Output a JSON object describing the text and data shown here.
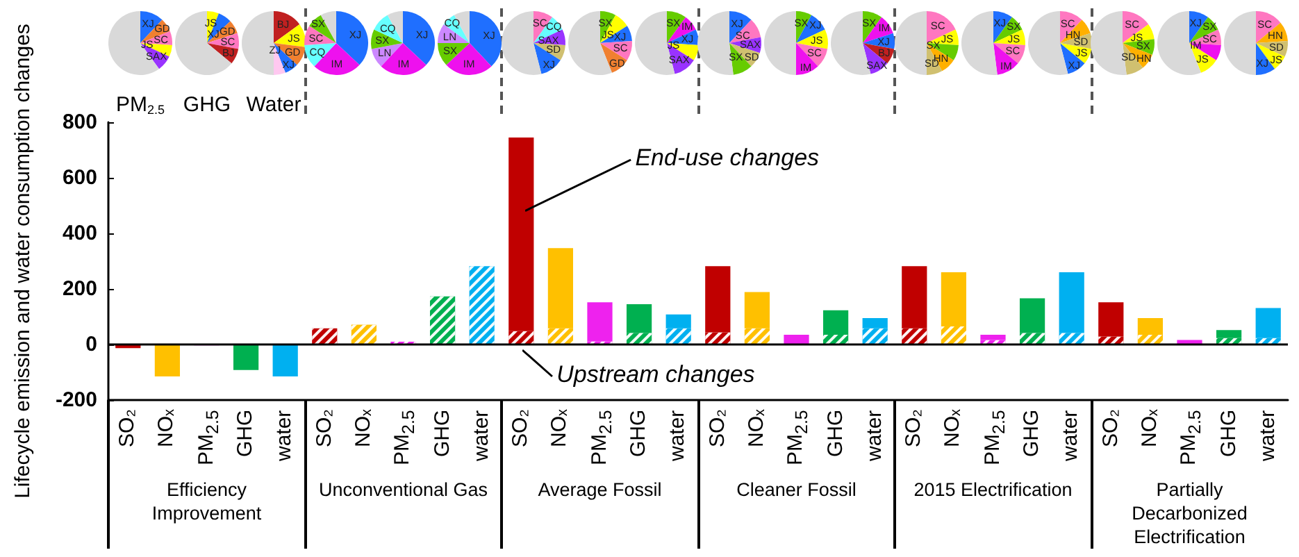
{
  "chart_data": [
    {
      "type": "bar",
      "stacked": true,
      "ylabel": "Lifecycle emission and water consumption changes",
      "ylim": [
        -200,
        800
      ],
      "yticks": [
        -200,
        0,
        200,
        400,
        600,
        800
      ],
      "grid": false,
      "ref_lines": [
        {
          "axis": "y",
          "value": 0
        }
      ],
      "categories": [
        "SO₂",
        "NOₓ",
        "PM$_{2.5}$",
        "GHG",
        "water",
        "SO₂",
        "NOₓ",
        "PM$_{2.5}$",
        "GHG",
        "water",
        "SO₂",
        "NOₓ",
        "PM$_{2.5}$",
        "GHG",
        "water",
        "SO₂",
        "NOₓ",
        "PM$_{2.5}$",
        "GHG",
        "water",
        "SO₂",
        "NOₓ",
        "PM$_{2.5}$",
        "GHG",
        "water",
        "SO₂",
        "NOₓ",
        "PM$_{2.5}$",
        "GHG",
        "water"
      ],
      "annotations": [
        "Efficiency Improvement",
        "Unconventional Gas",
        "Average Fossil",
        "Cleaner Fossil",
        "2015 Electrification",
        "Partially Decarbonized Electrification"
      ],
      "series": [
        {
          "name": "Upstream changes",
          "colors": [
            "#c00000",
            "#ffc000",
            "#ee22ee",
            "#00b050",
            "#00b0f0",
            "#c00000",
            "#ffc000",
            "#ee22ee",
            "#00b050",
            "#00b0f0",
            "#c00000",
            "#ffc000",
            "#ee22ee",
            "#00b050",
            "#00b0f0",
            "#c00000",
            "#ffc000",
            "#ee22ee",
            "#00b050",
            "#00b0f0",
            "#c00000",
            "#ffc000",
            "#ee22ee",
            "#00b050",
            "#00b0f0",
            "#c00000",
            "#ffc000",
            "#ee22ee",
            "#00b050",
            "#00b0f0"
          ],
          "values": [
            0,
            0,
            0,
            0,
            0,
            58,
            71,
            10,
            173,
            282,
            48,
            58,
            11,
            42,
            58,
            44,
            58,
            0,
            35,
            58,
            58,
            65,
            16,
            42,
            42,
            29,
            35,
            0,
            23,
            23
          ]
        },
        {
          "name": "End-use changes",
          "colors": [
            "#c00000",
            "#ffc000",
            "#ee22ee",
            "#00b050",
            "#00b0f0",
            "#c00000",
            "#ffc000",
            "#ee22ee",
            "#00b050",
            "#00b0f0",
            "#c00000",
            "#ffc000",
            "#ee22ee",
            "#00b050",
            "#00b0f0",
            "#c00000",
            "#ffc000",
            "#ee22ee",
            "#00b050",
            "#00b0f0",
            "#c00000",
            "#ffc000",
            "#ee22ee",
            "#00b050",
            "#00b0f0",
            "#c00000",
            "#ffc000",
            "#ee22ee",
            "#00b050",
            "#00b0f0"
          ],
          "values": [
            -13,
            -115,
            -3,
            -92,
            -115,
            0,
            0,
            0,
            0,
            0,
            697,
            289,
            141,
            103,
            50,
            238,
            131,
            35,
            88,
            37,
            224,
            195,
            19,
            124,
            218,
            123,
            60,
            16,
            29,
            108
          ]
        }
      ]
    },
    {
      "type": "pie",
      "title": "PM$_{2.5}$",
      "categories": [
        "XJ",
        "GD",
        "SC",
        "JS",
        "SAX",
        null
      ],
      "values": [
        12,
        7,
        7,
        6,
        8,
        60
      ],
      "colors": [
        "#1f6fff",
        "#f08030",
        "#ff77c0",
        "#ffff00",
        "#9933ff",
        "#d9d9d9"
      ]
    },
    {
      "type": "pie",
      "title": "GHG",
      "categories": [
        "JS",
        "XJ",
        "GD",
        "SC",
        "BJ",
        null
      ],
      "values": [
        6,
        7,
        7,
        8,
        8,
        64
      ],
      "colors": [
        "#ffff00",
        "#1f6fff",
        "#f08030",
        "#ff77c0",
        "#c02020",
        "#d9d9d9"
      ]
    },
    {
      "type": "pie",
      "title": "Water",
      "categories": [
        "BJ",
        "JS",
        "GD",
        "XJ",
        "ZJ",
        null
      ],
      "values": [
        15,
        12,
        10,
        7,
        6,
        50
      ],
      "colors": [
        "#c02020",
        "#ffff00",
        "#f08030",
        "#1f6fff",
        "#ffc8f0",
        "#d9d9d9"
      ]
    },
    {
      "type": "pie",
      "categories": [
        "XJ",
        "IM",
        "CQ",
        "SC",
        "SX",
        null
      ],
      "values": [
        37,
        25,
        12,
        10,
        8,
        8
      ],
      "colors": [
        "#1f6fff",
        "#ee11ee",
        "#66ffff",
        "#ff77c0",
        "#66cc00",
        "#d9d9d9"
      ]
    },
    {
      "type": "pie",
      "categories": [
        "XJ",
        "IM",
        "LN",
        "SX",
        "CQ",
        null
      ],
      "values": [
        37,
        25,
        10,
        10,
        10,
        8
      ],
      "colors": [
        "#1f6fff",
        "#ee11ee",
        "#cc88ff",
        "#66cc00",
        "#66ffff",
        "#d9d9d9"
      ]
    },
    {
      "type": "pie",
      "categories": [
        "XJ",
        "IM",
        "SX",
        "LN",
        "CQ",
        null
      ],
      "values": [
        38,
        25,
        12,
        10,
        7,
        8
      ],
      "colors": [
        "#1f6fff",
        "#ee11ee",
        "#66cc00",
        "#cc88ff",
        "#66ffff",
        "#d9d9d9"
      ]
    },
    {
      "type": "pie",
      "categories": [
        "SC",
        "CQ",
        "SAX",
        "SD",
        "XJ",
        null
      ],
      "values": [
        10,
        8,
        8,
        8,
        12,
        54
      ],
      "colors": [
        "#ff77c0",
        "#66ffff",
        "#9933ff",
        "#d0c070",
        "#1f6fff",
        "#d9d9d9"
      ]
    },
    {
      "type": "pie",
      "categories": [
        "SX",
        "JS",
        "XJ",
        "SC",
        "GD",
        null
      ],
      "values": [
        8,
        8,
        8,
        10,
        10,
        56
      ],
      "colors": [
        "#66cc00",
        "#ffff00",
        "#1f6fff",
        "#ff77c0",
        "#f08030",
        "#d9d9d9"
      ]
    },
    {
      "type": "pie",
      "categories": [
        "SX",
        "IM",
        "XJ",
        "JS",
        "SAX",
        null
      ],
      "values": [
        10,
        8,
        8,
        8,
        12,
        54
      ],
      "colors": [
        "#66cc00",
        "#ee11ee",
        "#1f6fff",
        "#ffff00",
        "#9933ff",
        "#d9d9d9"
      ]
    },
    {
      "type": "pie",
      "categories": [
        "XJ",
        "SC",
        "SAX",
        "SD",
        "SX",
        null
      ],
      "values": [
        12,
        10,
        8,
        8,
        10,
        52
      ],
      "colors": [
        "#1f6fff",
        "#ff77c0",
        "#9933ff",
        "#d0c070",
        "#66cc00",
        "#d9d9d9"
      ]
    },
    {
      "type": "pie",
      "categories": [
        "SX",
        "XJ",
        "JS",
        "SC",
        "IM",
        null
      ],
      "values": [
        8,
        10,
        10,
        10,
        12,
        50
      ],
      "colors": [
        "#66cc00",
        "#1f6fff",
        "#ffff00",
        "#ff77c0",
        "#ee11ee",
        "#d9d9d9"
      ]
    },
    {
      "type": "pie",
      "categories": [
        "SX",
        "IM",
        "XJ",
        "BJ",
        "SAX",
        null
      ],
      "values": [
        10,
        10,
        8,
        8,
        10,
        54
      ],
      "colors": [
        "#66cc00",
        "#ee11ee",
        "#1f6fff",
        "#c02020",
        "#9933ff",
        "#d9d9d9"
      ]
    },
    {
      "type": "pie",
      "categories": [
        "SC",
        "JS",
        "SX",
        "HN",
        "SD",
        null
      ],
      "values": [
        18,
        8,
        8,
        8,
        8,
        50
      ],
      "colors": [
        "#ff77c0",
        "#ffff00",
        "#66cc00",
        "#ffb000",
        "#d0c070",
        "#d9d9d9"
      ]
    },
    {
      "type": "pie",
      "categories": [
        "XJ",
        "SX",
        "JS",
        "SC",
        "IM",
        null
      ],
      "values": [
        10,
        8,
        8,
        10,
        12,
        52
      ],
      "colors": [
        "#1f6fff",
        "#66cc00",
        "#ffff00",
        "#ff77c0",
        "#ee11ee",
        "#d9d9d9"
      ]
    },
    {
      "type": "pie",
      "categories": [
        "SC",
        "HN",
        "SD",
        "JS",
        "XJ",
        null
      ],
      "values": [
        12,
        8,
        8,
        8,
        10,
        54
      ],
      "colors": [
        "#ff77c0",
        "#ffb000",
        "#d0c070",
        "#ffff00",
        "#1f6fff",
        "#d9d9d9"
      ]
    },
    {
      "type": "pie",
      "categories": [
        "SC",
        "JS",
        "SX",
        "HN",
        "SD",
        null
      ],
      "values": [
        15,
        8,
        8,
        8,
        9,
        52
      ],
      "colors": [
        "#ff77c0",
        "#ffff00",
        "#66cc00",
        "#ffb000",
        "#d0c070",
        "#d9d9d9"
      ]
    },
    {
      "type": "pie",
      "categories": [
        "XJ",
        "SX",
        "SC",
        "IM",
        "JS",
        null
      ],
      "values": [
        10,
        8,
        8,
        8,
        10,
        56
      ],
      "colors": [
        "#1f6fff",
        "#66cc00",
        "#ff77c0",
        "#ee11ee",
        "#ffff00",
        "#d9d9d9"
      ]
    },
    {
      "type": "pie",
      "categories": [
        "SC",
        "HN",
        "SD",
        "JS",
        "XJ",
        null
      ],
      "values": [
        14,
        10,
        8,
        8,
        10,
        50
      ],
      "colors": [
        "#ff77c0",
        "#ffb000",
        "#d0c070",
        "#ffff00",
        "#1f6fff",
        "#d9d9d9"
      ]
    }
  ]
}
